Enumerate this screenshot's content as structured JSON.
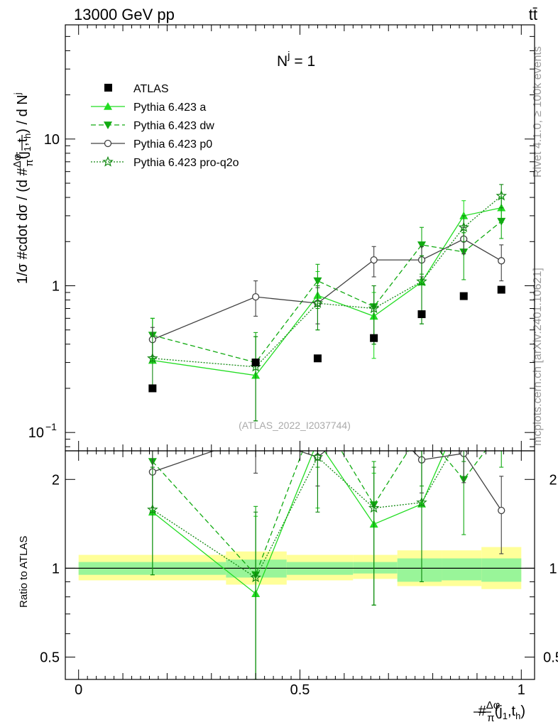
{
  "header": {
    "energy": "13000 GeV pp",
    "process": "tt̄"
  },
  "side_text": {
    "rivet": "Rivet 4.1.0, ≥ 100k events",
    "source": "mcplots.cern.ch [arXiv:2401.10621]"
  },
  "chart_data": {
    "type": "line",
    "title": "N^j = 1",
    "title_main": "N",
    "title_sup": "j",
    "title_rest": " = 1",
    "watermark": "(ATLAS_2022_I2037744)",
    "xlabel": "#Δφ/π(j1,th)",
    "xlabel_parts": {
      "hash": "#",
      "num": "Δφ",
      "den": "π",
      "pre": "(j",
      "sub1": "1",
      "mid": ",t",
      "sub2": "h",
      "post": ")"
    },
    "ylabel": "1/σ #cdot dσ / (d #Δφ/π(j1,th) / d N^j)",
    "ylabel_parts": {
      "a": "1/σ #cdot dσ / (d #",
      "num": "Δφ",
      "den": "π",
      "b": "(j",
      "s1": "1",
      "c": ",t",
      "s2": "h",
      "d": ") / d N",
      "sup": "j"
    },
    "ratio_ylabel": "Ratio to ATLAS",
    "xlim": [
      -0.03,
      1.03
    ],
    "ylim": [
      0.075,
      60
    ],
    "ratio_ylim": [
      0.42,
      2.5
    ],
    "x_ticks": [
      {
        "value": 0,
        "label": "0"
      },
      {
        "value": 0.5,
        "label": "0.5"
      },
      {
        "value": 1,
        "label": "1"
      }
    ],
    "y_ticks": [
      {
        "value": 1,
        "label": "1"
      },
      {
        "value": 10,
        "label": "10"
      }
    ],
    "y_tick_exp": {
      "value": 0.1,
      "base": "10",
      "exp": "−1"
    },
    "ratio_ticks": [
      {
        "value": 0.5,
        "label": "0.5"
      },
      {
        "value": 1,
        "label": "1"
      },
      {
        "value": 2,
        "label": "2"
      }
    ],
    "atlas": {
      "name": "ATLAS",
      "x": [
        0.167,
        0.4,
        0.54,
        0.667,
        0.775,
        0.87,
        0.955
      ],
      "y": [
        0.2,
        0.3,
        0.32,
        0.44,
        0.64,
        0.85,
        0.94
      ]
    },
    "bands": {
      "edges": [
        0,
        0.333,
        0.47,
        0.62,
        0.72,
        0.82,
        0.91,
        1.0
      ],
      "stat_lo": [
        0.95,
        0.93,
        0.95,
        0.96,
        0.9,
        0.91,
        0.9
      ],
      "stat_hi": [
        1.05,
        1.07,
        1.05,
        1.05,
        1.08,
        1.08,
        1.08
      ],
      "tot_lo": [
        0.91,
        0.88,
        0.91,
        0.92,
        0.87,
        0.87,
        0.85
      ],
      "tot_hi": [
        1.11,
        1.14,
        1.11,
        1.11,
        1.15,
        1.15,
        1.18
      ],
      "stat_color": "#99f599",
      "tot_color": "#ffff99"
    },
    "series": [
      {
        "name": "Pythia 6.423 a",
        "color": "#22dd22",
        "dash": "",
        "marker": "triangle-up",
        "x": [
          0.167,
          0.4,
          0.54,
          0.667,
          0.775,
          0.87,
          0.955
        ],
        "y": [
          0.31,
          0.245,
          0.86,
          0.62,
          1.06,
          3.0,
          3.4
        ],
        "err_lo": [
          0.31,
          0.245,
          0.5,
          0.32,
          0.55,
          2.3,
          2.7
        ],
        "err_hi": [
          0.6,
          0.45,
          1.25,
          0.9,
          1.6,
          3.8,
          4.0
        ],
        "ratio": [
          1.55,
          0.82,
          2.7,
          1.41,
          1.65,
          3.5,
          3.6
        ],
        "ratio_err_lo": [
          0.95,
          0.42,
          1.6,
          0.75,
          0.9,
          2.7,
          2.9
        ],
        "ratio_err_hi": [
          2.2,
          1.5,
          3.9,
          2.1,
          2.5,
          4.5,
          4.3
        ]
      },
      {
        "name": "Pythia 6.423 dw",
        "color": "#11aa11",
        "dash": "7,4",
        "marker": "triangle-down",
        "x": [
          0.167,
          0.4,
          0.54,
          0.667,
          0.775,
          0.87,
          0.955
        ],
        "y": [
          0.46,
          0.3,
          1.08,
          0.72,
          1.9,
          1.7,
          2.75
        ],
        "err_lo": [
          0.32,
          0.12,
          0.7,
          0.4,
          1.2,
          1.1,
          2.1
        ],
        "err_hi": [
          0.6,
          0.48,
          1.4,
          1.0,
          2.5,
          2.3,
          3.4
        ],
        "ratio": [
          2.3,
          0.95,
          3.4,
          1.64,
          2.95,
          2.0,
          2.95
        ],
        "ratio_err_lo": [
          1.6,
          0.42,
          2.2,
          0.75,
          1.9,
          1.3,
          2.2
        ],
        "ratio_err_hi": [
          3.0,
          1.62,
          4.4,
          2.3,
          3.9,
          2.7,
          3.7
        ]
      },
      {
        "name": "Pythia 6.423 p0",
        "color": "#404040",
        "dash": "",
        "marker": "circle-open",
        "x": [
          0.167,
          0.4,
          0.54,
          0.667,
          0.775,
          0.87,
          0.955
        ],
        "y": [
          0.43,
          0.84,
          0.76,
          1.5,
          1.5,
          2.08,
          1.48
        ],
        "err_lo": [
          0.33,
          0.62,
          0.55,
          1.15,
          1.15,
          1.65,
          1.08
        ],
        "err_hi": [
          0.52,
          1.08,
          0.97,
          1.85,
          1.85,
          2.5,
          1.9
        ],
        "ratio": [
          2.12,
          2.8,
          2.38,
          3.4,
          2.33,
          2.45,
          1.57
        ],
        "ratio_err_lo": [
          1.6,
          2.1,
          1.9,
          2.7,
          1.8,
          1.95,
          1.12
        ],
        "ratio_err_hi": [
          2.6,
          3.5,
          2.9,
          4.1,
          2.9,
          3.0,
          2.05
        ]
      },
      {
        "name": "Pythia 6.423 pro-q2o",
        "color": "#118811",
        "dash": "2,2",
        "marker": "star-open",
        "x": [
          0.167,
          0.4,
          0.54,
          0.667,
          0.775,
          0.87,
          0.955
        ],
        "y": [
          0.32,
          0.28,
          0.76,
          0.7,
          1.07,
          2.5,
          4.1
        ],
        "err_lo": [
          0.2,
          0.12,
          0.5,
          0.4,
          0.55,
          2.0,
          3.4
        ],
        "err_hi": [
          0.45,
          0.45,
          1.0,
          1.0,
          1.6,
          3.0,
          4.9
        ],
        "ratio": [
          1.58,
          0.93,
          2.38,
          1.6,
          1.67,
          2.95,
          4.4
        ],
        "ratio_err_lo": [
          0.95,
          0.42,
          1.55,
          0.75,
          0.9,
          2.3,
          3.6
        ],
        "ratio_err_hi": [
          2.2,
          1.55,
          3.2,
          2.2,
          2.5,
          3.6,
          5.2
        ]
      }
    ]
  }
}
